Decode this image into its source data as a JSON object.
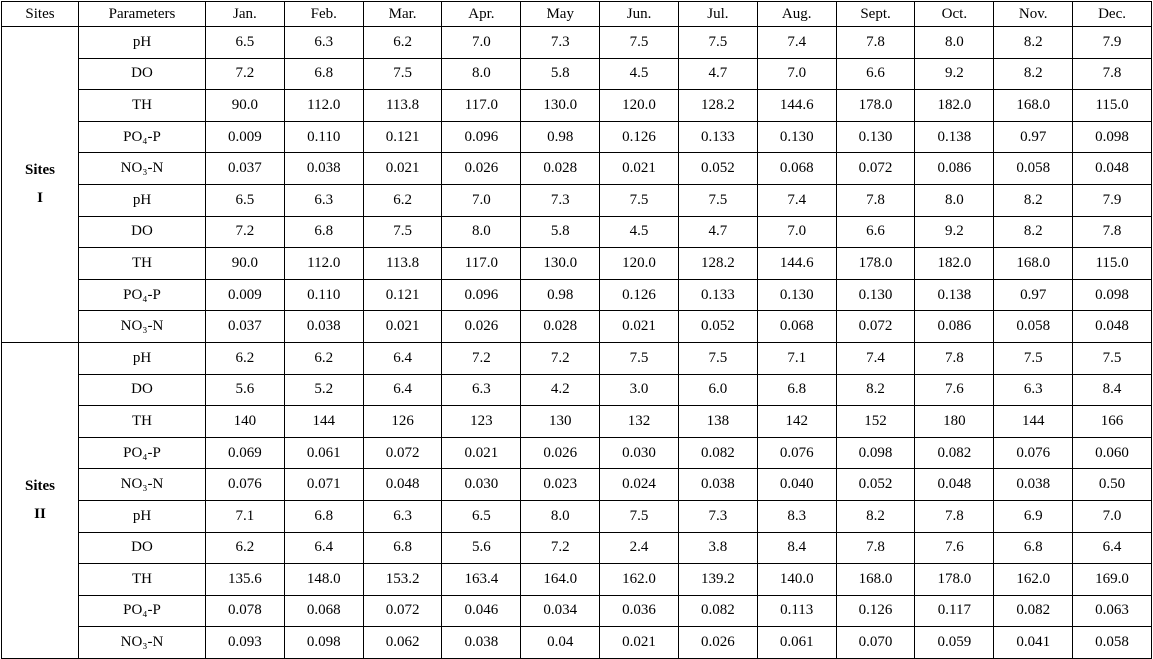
{
  "colors": {
    "border": "#000000",
    "text": "#000000",
    "background": "#ffffff"
  },
  "table": {
    "header": [
      "Sites",
      "Parameters",
      "Jan.",
      "Feb.",
      "Mar.",
      "Apr.",
      "May",
      "Jun.",
      "Jul.",
      "Aug.",
      "Sept.",
      "Oct.",
      "Nov.",
      "Dec."
    ],
    "site_groups": [
      {
        "site_lines": [
          "Sites",
          "I"
        ],
        "rows": [
          {
            "parameter": "pH",
            "values": [
              "6.5",
              "6.3",
              "6.2",
              "7.0",
              "7.3",
              "7.5",
              "7.5",
              "7.4",
              "7.8",
              "8.0",
              "8.2",
              "7.9"
            ]
          },
          {
            "parameter": "DO",
            "values": [
              "7.2",
              "6.8",
              "7.5",
              "8.0",
              "5.8",
              "4.5",
              "4.7",
              "7.0",
              "6.6",
              "9.2",
              "8.2",
              "7.8"
            ]
          },
          {
            "parameter": "TH",
            "values": [
              "90.0",
              "112.0",
              "113.8",
              "117.0",
              "130.0",
              "120.0",
              "128.2",
              "144.6",
              "178.0",
              "182.0",
              "168.0",
              "115.0"
            ]
          },
          {
            "parameter": "PO₄-P",
            "values": [
              "0.009",
              "0.110",
              "0.121",
              "0.096",
              "0.98",
              "0.126",
              "0.133",
              "0.130",
              "0.130",
              "0.138",
              "0.97",
              "0.098"
            ]
          },
          {
            "parameter": "NO₃-N",
            "values": [
              "0.037",
              "0.038",
              "0.021",
              "0.026",
              "0.028",
              "0.021",
              "0.052",
              "0.068",
              "0.072",
              "0.086",
              "0.058",
              "0.048"
            ]
          },
          {
            "parameter": "pH",
            "values": [
              "6.5",
              "6.3",
              "6.2",
              "7.0",
              "7.3",
              "7.5",
              "7.5",
              "7.4",
              "7.8",
              "8.0",
              "8.2",
              "7.9"
            ]
          },
          {
            "parameter": "DO",
            "values": [
              "7.2",
              "6.8",
              "7.5",
              "8.0",
              "5.8",
              "4.5",
              "4.7",
              "7.0",
              "6.6",
              "9.2",
              "8.2",
              "7.8"
            ]
          },
          {
            "parameter": "TH",
            "values": [
              "90.0",
              "112.0",
              "113.8",
              "117.0",
              "130.0",
              "120.0",
              "128.2",
              "144.6",
              "178.0",
              "182.0",
              "168.0",
              "115.0"
            ]
          },
          {
            "parameter": "PO₄-P",
            "values": [
              "0.009",
              "0.110",
              "0.121",
              "0.096",
              "0.98",
              "0.126",
              "0.133",
              "0.130",
              "0.130",
              "0.138",
              "0.97",
              "0.098"
            ]
          },
          {
            "parameter": "NO₃-N",
            "values": [
              "0.037",
              "0.038",
              "0.021",
              "0.026",
              "0.028",
              "0.021",
              "0.052",
              "0.068",
              "0.072",
              "0.086",
              "0.058",
              "0.048"
            ]
          }
        ]
      },
      {
        "site_lines": [
          "Sites",
          "II"
        ],
        "rows": [
          {
            "parameter": "pH",
            "values": [
              "6.2",
              "6.2",
              "6.4",
              "7.2",
              "7.2",
              "7.5",
              "7.5",
              "7.1",
              "7.4",
              "7.8",
              "7.5",
              "7.5"
            ]
          },
          {
            "parameter": "DO",
            "values": [
              "5.6",
              "5.2",
              "6.4",
              "6.3",
              "4.2",
              "3.0",
              "6.0",
              "6.8",
              "8.2",
              "7.6",
              "6.3",
              "8.4"
            ]
          },
          {
            "parameter": "TH",
            "values": [
              "140",
              "144",
              "126",
              "123",
              "130",
              "132",
              "138",
              "142",
              "152",
              "180",
              "144",
              "166"
            ]
          },
          {
            "parameter": "PO₄-P",
            "values": [
              "0.069",
              "0.061",
              "0.072",
              "0.021",
              "0.026",
              "0.030",
              "0.082",
              "0.076",
              "0.098",
              "0.082",
              "0.076",
              "0.060"
            ]
          },
          {
            "parameter": "NO₃-N",
            "values": [
              "0.076",
              "0.071",
              "0.048",
              "0.030",
              "0.023",
              "0.024",
              "0.038",
              "0.040",
              "0.052",
              "0.048",
              "0.038",
              "0.50"
            ]
          },
          {
            "parameter": "pH",
            "values": [
              "7.1",
              "6.8",
              "6.3",
              "6.5",
              "8.0",
              "7.5",
              "7.3",
              "8.3",
              "8.2",
              "7.8",
              "6.9",
              "7.0"
            ]
          },
          {
            "parameter": "DO",
            "values": [
              "6.2",
              "6.4",
              "6.8",
              "5.6",
              "7.2",
              "2.4",
              "3.8",
              "8.4",
              "7.8",
              "7.6",
              "6.8",
              "6.4"
            ]
          },
          {
            "parameter": "TH",
            "values": [
              "135.6",
              "148.0",
              "153.2",
              "163.4",
              "164.0",
              "162.0",
              "139.2",
              "140.0",
              "168.0",
              "178.0",
              "162.0",
              "169.0"
            ]
          },
          {
            "parameter": "PO₄-P",
            "values": [
              "0.078",
              "0.068",
              "0.072",
              "0.046",
              "0.034",
              "0.036",
              "0.082",
              "0.113",
              "0.126",
              "0.117",
              "0.082",
              "0.063"
            ]
          },
          {
            "parameter": "NO₃-N",
            "values": [
              "0.093",
              "0.098",
              "0.062",
              "0.038",
              "0.04",
              "0.021",
              "0.026",
              "0.061",
              "0.070",
              "0.059",
              "0.041",
              "0.058"
            ]
          }
        ]
      }
    ]
  }
}
